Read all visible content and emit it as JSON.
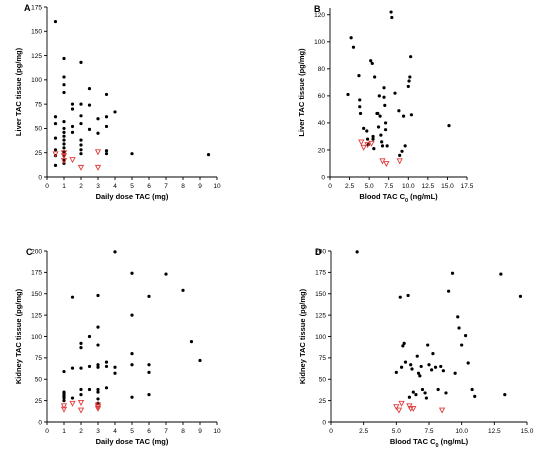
{
  "chart_data": [
    {
      "type": "scatter",
      "panel": "A",
      "xlabel": "Daily dose TAC (mg)",
      "ylabel": "Liver  TAC tissue (pg/mg)",
      "xlim": [
        0,
        10
      ],
      "ylim": [
        0,
        175
      ],
      "xticks": [
        0,
        1,
        2,
        3,
        4,
        5,
        6,
        7,
        8,
        9,
        10
      ],
      "yticks": [
        0,
        25,
        50,
        75,
        100,
        125,
        150,
        175
      ],
      "ytick_labels": [
        "0",
        "25",
        "50",
        "75",
        "100",
        "125",
        "150",
        "175"
      ],
      "series": [
        {
          "marker": "dot",
          "color": "#000000",
          "points": [
            [
              0.5,
              160
            ],
            [
              0.5,
              62
            ],
            [
              0.5,
              55
            ],
            [
              0.5,
              40
            ],
            [
              0.5,
              28
            ],
            [
              0.5,
              22
            ],
            [
              0.5,
              12
            ],
            [
              1,
              122
            ],
            [
              1,
              103
            ],
            [
              1,
              95
            ],
            [
              1,
              87
            ],
            [
              1,
              57
            ],
            [
              1,
              50
            ],
            [
              1,
              46
            ],
            [
              1,
              42
            ],
            [
              1,
              38
            ],
            [
              1,
              34
            ],
            [
              1,
              30
            ],
            [
              1,
              26
            ],
            [
              1,
              22
            ],
            [
              1,
              17
            ],
            [
              1,
              14
            ],
            [
              1.5,
              75
            ],
            [
              1.5,
              70
            ],
            [
              1.5,
              52
            ],
            [
              1.5,
              46
            ],
            [
              2,
              118
            ],
            [
              2,
              75
            ],
            [
              2,
              63
            ],
            [
              2,
              55
            ],
            [
              2,
              38
            ],
            [
              2,
              33
            ],
            [
              2,
              28
            ],
            [
              2,
              24
            ],
            [
              2.5,
              91
            ],
            [
              2.5,
              74
            ],
            [
              2.5,
              49
            ],
            [
              3,
              60
            ],
            [
              3,
              45
            ],
            [
              3.5,
              85
            ],
            [
              3.5,
              62
            ],
            [
              3.5,
              52
            ],
            [
              3.5,
              27
            ],
            [
              3.5,
              24
            ],
            [
              4,
              67
            ],
            [
              5,
              24
            ],
            [
              9.5,
              23
            ]
          ]
        },
        {
          "marker": "triangle",
          "color": "#e23a3a",
          "points": [
            [
              0.5,
              24
            ],
            [
              1,
              25
            ],
            [
              1,
              22
            ],
            [
              1,
              17
            ],
            [
              1.5,
              18
            ],
            [
              2,
              10
            ],
            [
              3,
              26
            ],
            [
              3,
              10
            ]
          ]
        }
      ]
    },
    {
      "type": "scatter",
      "panel": "B",
      "xlabel": "Blood TAC C",
      "xlabel_sub": "0",
      "xlabel_unit": " (ng/mL)",
      "ylabel": "Liver  TAC tissue (pg/mg)",
      "xlim": [
        0,
        17.5
      ],
      "ylim": [
        0,
        125
      ],
      "xticks": [
        0,
        2.5,
        5,
        7.5,
        10,
        12.5,
        15,
        17.5
      ],
      "xtick_labels": [
        "0",
        "2.5",
        "5.0",
        "7.5",
        "10.0",
        "12.5",
        "15.0",
        "17.5"
      ],
      "yticks": [
        0,
        20,
        40,
        60,
        80,
        100,
        120
      ],
      "ytick_labels": [
        "0",
        "20",
        "40",
        "60",
        "80",
        "100",
        "120"
      ],
      "series": [
        {
          "marker": "dot",
          "color": "#000000",
          "points": [
            [
              2.3,
              61
            ],
            [
              2.7,
              103
            ],
            [
              3.0,
              96
            ],
            [
              3.7,
              75
            ],
            [
              3.8,
              57
            ],
            [
              3.8,
              52
            ],
            [
              3.9,
              47
            ],
            [
              4.3,
              36
            ],
            [
              4.7,
              34
            ],
            [
              4.8,
              28
            ],
            [
              4.9,
              24
            ],
            [
              5.2,
              86
            ],
            [
              5.4,
              84
            ],
            [
              5.5,
              30
            ],
            [
              5.5,
              28
            ],
            [
              5.6,
              21
            ],
            [
              5.7,
              74
            ],
            [
              6.0,
              47
            ],
            [
              6.1,
              47
            ],
            [
              6.2,
              37
            ],
            [
              6.3,
              60
            ],
            [
              6.4,
              45
            ],
            [
              6.5,
              31
            ],
            [
              6.6,
              26
            ],
            [
              6.7,
              23
            ],
            [
              6.9,
              66
            ],
            [
              6.9,
              59
            ],
            [
              7.0,
              53
            ],
            [
              7.1,
              40
            ],
            [
              7.1,
              35
            ],
            [
              7.3,
              23
            ],
            [
              7.8,
              122
            ],
            [
              7.9,
              118
            ],
            [
              8.3,
              62
            ],
            [
              8.8,
              49
            ],
            [
              8.9,
              16
            ],
            [
              9.2,
              19
            ],
            [
              9.4,
              45
            ],
            [
              9.6,
              23
            ],
            [
              10.0,
              67
            ],
            [
              10.1,
              71
            ],
            [
              10.2,
              74
            ],
            [
              10.3,
              89
            ],
            [
              10.4,
              46
            ],
            [
              15.2,
              38
            ]
          ]
        },
        {
          "marker": "triangle",
          "color": "#e23a3a",
          "points": [
            [
              4.0,
              26
            ],
            [
              4.3,
              22
            ],
            [
              4.8,
              24
            ],
            [
              5.3,
              25
            ],
            [
              6.7,
              12
            ],
            [
              7.2,
              10
            ],
            [
              8.9,
              12
            ]
          ]
        }
      ]
    },
    {
      "type": "scatter",
      "panel": "C",
      "xlabel": "Daily dose TAC (mg)",
      "ylabel": "Kidney  TAC tissue (pg/mg)",
      "xlim": [
        0,
        10
      ],
      "ylim": [
        0,
        200
      ],
      "xticks": [
        0,
        1,
        2,
        3,
        4,
        5,
        6,
        7,
        8,
        9,
        10
      ],
      "yticks": [
        0,
        25,
        50,
        75,
        100,
        125,
        150,
        175,
        200
      ],
      "series": [
        {
          "marker": "dot",
          "color": "#000000",
          "points": [
            [
              1,
              59
            ],
            [
              1,
              35
            ],
            [
              1,
              33
            ],
            [
              1,
              31
            ],
            [
              1,
              30
            ],
            [
              1,
              28
            ],
            [
              1,
              25
            ],
            [
              1.5,
              146
            ],
            [
              1.5,
              63
            ],
            [
              1.5,
              28
            ],
            [
              2,
              92
            ],
            [
              2,
              87
            ],
            [
              2,
              63
            ],
            [
              2,
              38
            ],
            [
              2,
              32
            ],
            [
              2.5,
              100
            ],
            [
              2.5,
              65
            ],
            [
              2.5,
              38
            ],
            [
              3,
              148
            ],
            [
              3,
              111
            ],
            [
              3,
              90
            ],
            [
              3,
              67
            ],
            [
              3,
              64
            ],
            [
              3,
              38
            ],
            [
              3,
              35
            ],
            [
              3,
              27
            ],
            [
              3,
              22
            ],
            [
              3.5,
              70
            ],
            [
              3.5,
              65
            ],
            [
              3.5,
              40
            ],
            [
              4,
              199
            ],
            [
              4,
              64
            ],
            [
              4,
              57
            ],
            [
              5,
              174
            ],
            [
              5,
              125
            ],
            [
              5,
              80
            ],
            [
              5,
              67
            ],
            [
              5,
              29
            ],
            [
              6,
              147
            ],
            [
              6,
              67
            ],
            [
              6,
              58
            ],
            [
              6,
              32
            ],
            [
              7,
              173
            ],
            [
              8,
              154
            ],
            [
              8.5,
              94
            ],
            [
              9,
              72
            ]
          ]
        },
        {
          "marker": "triangle",
          "color": "#e23a3a",
          "points": [
            [
              1,
              19
            ],
            [
              1,
              15
            ],
            [
              1.5,
              22
            ],
            [
              2,
              23
            ],
            [
              2,
              14
            ],
            [
              3,
              20
            ],
            [
              3,
              18
            ],
            [
              3,
              16
            ]
          ]
        }
      ]
    },
    {
      "type": "scatter",
      "panel": "D",
      "xlabel": "Blood TAC C",
      "xlabel_sub": "0",
      "xlabel_unit": " (ng/mL)",
      "ylabel": "Kidney TAC tissue (pg/mg)",
      "xlim": [
        0,
        15
      ],
      "ylim": [
        0,
        200
      ],
      "xticks": [
        0,
        2.5,
        5,
        7.5,
        10,
        12.5,
        15
      ],
      "xtick_labels": [
        "0",
        "2.5",
        "5.0",
        "7.5",
        "10.0",
        "12.5",
        "15.0"
      ],
      "yticks": [
        0,
        25,
        50,
        75,
        100,
        125,
        150,
        175,
        200
      ],
      "series": [
        {
          "marker": "dot",
          "color": "#000000",
          "points": [
            [
              2.0,
              199
            ],
            [
              5.0,
              58
            ],
            [
              5.3,
              146
            ],
            [
              5.4,
              64
            ],
            [
              5.5,
              89
            ],
            [
              5.6,
              92
            ],
            [
              5.7,
              70
            ],
            [
              5.9,
              148
            ],
            [
              6.0,
              29
            ],
            [
              6.1,
              67
            ],
            [
              6.2,
              62
            ],
            [
              6.3,
              35
            ],
            [
              6.5,
              32
            ],
            [
              6.6,
              77
            ],
            [
              6.7,
              57
            ],
            [
              6.8,
              54
            ],
            [
              6.9,
              65
            ],
            [
              7.0,
              38
            ],
            [
              7.2,
              34
            ],
            [
              7.3,
              28
            ],
            [
              7.4,
              90
            ],
            [
              7.5,
              67
            ],
            [
              7.7,
              61
            ],
            [
              7.8,
              80
            ],
            [
              8.0,
              64
            ],
            [
              8.2,
              38
            ],
            [
              8.4,
              65
            ],
            [
              8.6,
              60
            ],
            [
              8.8,
              34
            ],
            [
              9.0,
              153
            ],
            [
              9.3,
              174
            ],
            [
              9.5,
              57
            ],
            [
              9.7,
              123
            ],
            [
              9.8,
              110
            ],
            [
              10.0,
              90
            ],
            [
              10.3,
              101
            ],
            [
              10.5,
              69
            ],
            [
              10.8,
              38
            ],
            [
              11.0,
              30
            ],
            [
              13.0,
              173
            ],
            [
              13.3,
              32
            ],
            [
              14.5,
              147
            ]
          ]
        },
        {
          "marker": "triangle",
          "color": "#e23a3a",
          "points": [
            [
              5.0,
              18
            ],
            [
              5.2,
              14
            ],
            [
              5.4,
              22
            ],
            [
              6.0,
              19
            ],
            [
              6.1,
              16
            ],
            [
              6.3,
              16
            ],
            [
              8.5,
              14
            ]
          ]
        }
      ]
    }
  ]
}
